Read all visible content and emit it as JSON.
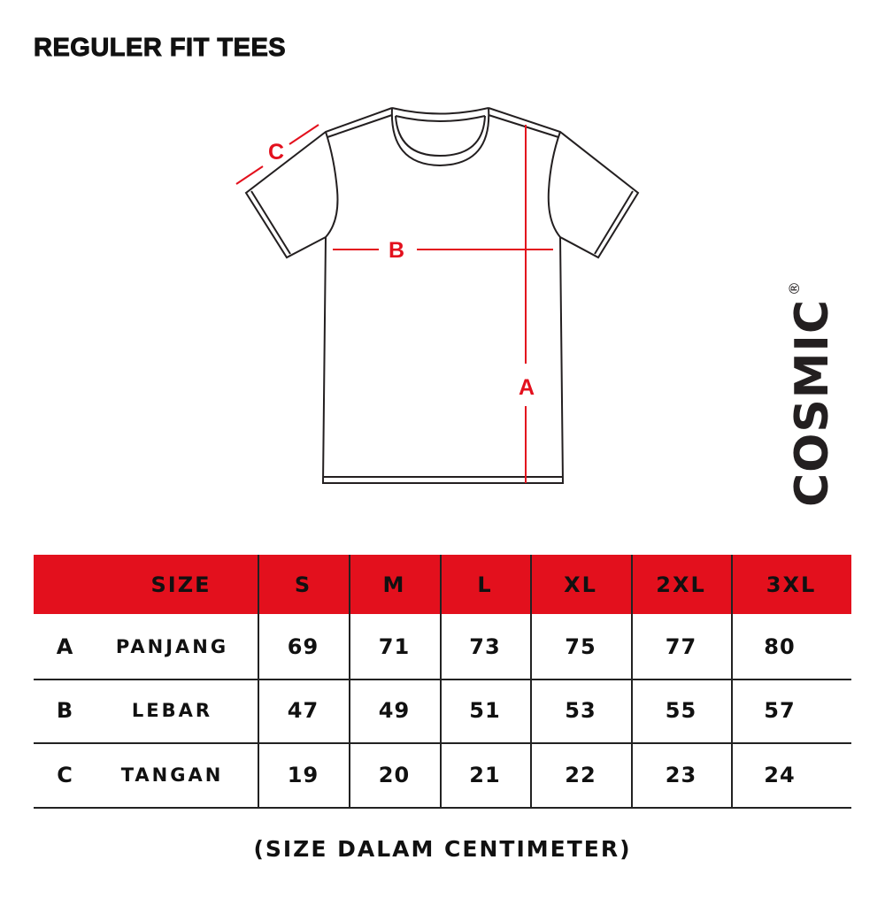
{
  "title": "REGULER FIT TEES",
  "diagram": {
    "labels": {
      "a": "A",
      "b": "B",
      "c": "C"
    },
    "colors": {
      "measure": "#e3101d",
      "outline": "#231f20"
    }
  },
  "brand": {
    "name": "COSMIC",
    "mark": "®"
  },
  "table": {
    "header_color": "#e3101d",
    "size_label": "SIZE",
    "sizes": [
      "S",
      "M",
      "L",
      "XL",
      "2XL",
      "3XL"
    ],
    "rows": [
      {
        "key": "A",
        "label": "PANJANG",
        "values": [
          "69",
          "71",
          "73",
          "75",
          "77",
          "80"
        ]
      },
      {
        "key": "B",
        "label": "LEBAR",
        "values": [
          "47",
          "49",
          "51",
          "53",
          "55",
          "57"
        ]
      },
      {
        "key": "C",
        "label": "TANGAN",
        "values": [
          "19",
          "20",
          "21",
          "22",
          "23",
          "24"
        ]
      }
    ]
  },
  "note": "(SIZE DALAM CENTIMETER)"
}
